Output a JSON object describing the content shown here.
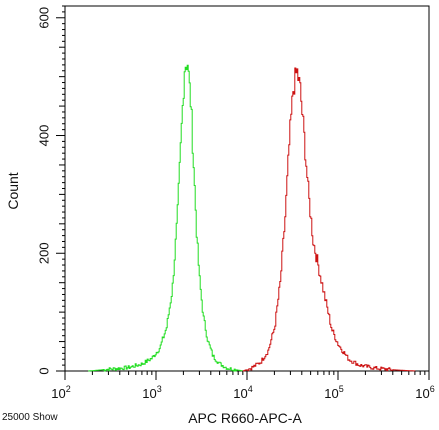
{
  "chart_data": {
    "type": "line",
    "xlabel": "APC R660-APC-A",
    "ylabel": "Count",
    "x_scale": "log",
    "xlim": [
      100,
      1000000
    ],
    "ylim": [
      0,
      620
    ],
    "x_ticks": [
      {
        "value": 100,
        "base": "10",
        "exp": "2"
      },
      {
        "value": 1000,
        "base": "10",
        "exp": "3"
      },
      {
        "value": 10000,
        "base": "10",
        "exp": "4"
      },
      {
        "value": 100000,
        "base": "10",
        "exp": "5"
      },
      {
        "value": 1000000,
        "base": "10",
        "exp": "6"
      }
    ],
    "y_ticks": [
      "0",
      "200",
      "400",
      "600"
    ],
    "y_tick_values": [
      0,
      200,
      400,
      600
    ],
    "grid": false,
    "footnote": "25000 Show",
    "series": [
      {
        "color": "#22dd22",
        "x": [
          180,
          300,
          500,
          700,
          900,
          1100,
          1300,
          1500,
          1700,
          1900,
          2050,
          2200,
          2400,
          2600,
          2800,
          3000,
          3300,
          3700,
          4200,
          5000,
          6000,
          7500,
          9000
        ],
        "y": [
          0,
          3,
          6,
          12,
          22,
          40,
          75,
          140,
          260,
          420,
          520,
          525,
          450,
          330,
          220,
          150,
          90,
          50,
          25,
          12,
          5,
          2,
          0
        ]
      },
      {
        "color": "#cc1111",
        "x": [
          9000,
          11000,
          14000,
          17000,
          20000,
          23000,
          26000,
          29000,
          32000,
          35000,
          38000,
          42000,
          47000,
          53000,
          60000,
          70000,
          85000,
          100000,
          130000,
          170000,
          250000,
          400000,
          700000
        ],
        "y": [
          0,
          5,
          15,
          35,
          75,
          150,
          260,
          390,
          480,
          510,
          480,
          400,
          300,
          220,
          180,
          130,
          70,
          45,
          20,
          10,
          5,
          2,
          0
        ]
      }
    ]
  }
}
